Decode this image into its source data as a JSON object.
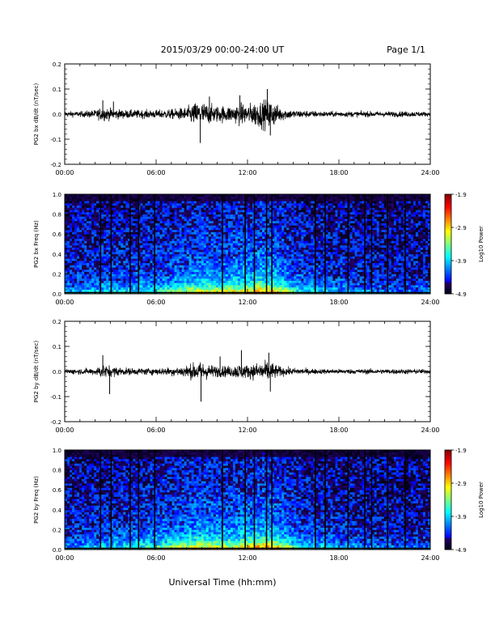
{
  "header": {
    "title": "2015/03/29  00:00-24:00 UT",
    "page": "Page 1/1"
  },
  "xaxis_label": "Universal Time (hh:mm)",
  "colorbar": {
    "ticks": [
      "-1.9",
      "-2.9",
      "-3.9",
      "-4.9"
    ],
    "label": "Log10 Power",
    "scale": "jet",
    "range": [
      -4.9,
      -1.9
    ]
  },
  "chart_data": [
    {
      "type": "line",
      "ylabel": "PG2 bx dB/dt (nT/sec)",
      "xlim": [
        "00:00",
        "24:00"
      ],
      "ylim": [
        -0.2,
        0.2
      ],
      "x_ticks": [
        "00:00",
        "06:00",
        "12:00",
        "18:00",
        "24:00"
      ],
      "y_ticks": [
        "0.2",
        "0.1",
        "0.0",
        "-0.1",
        "-0.2"
      ],
      "series": [
        {
          "envelope_hours": [
            0,
            1,
            2,
            2.5,
            3,
            4,
            5,
            6,
            7,
            8,
            8.5,
            9,
            9.5,
            10,
            11,
            11.5,
            12,
            12.5,
            13,
            13.5,
            14,
            14.5,
            15,
            16,
            17,
            18,
            19,
            20,
            21,
            22,
            23,
            24
          ],
          "envelope_amplitude": [
            0.02,
            0.02,
            0.03,
            0.05,
            0.04,
            0.03,
            0.03,
            0.03,
            0.035,
            0.05,
            0.08,
            0.09,
            0.07,
            0.06,
            0.06,
            0.08,
            0.07,
            0.09,
            0.1,
            0.11,
            0.06,
            0.04,
            0.03,
            0.025,
            0.02,
            0.02,
            0.02,
            0.02,
            0.02,
            0.02,
            0.02,
            0.015
          ],
          "spikes": [
            [
              2.5,
              0.055
            ],
            [
              3.2,
              0.05
            ],
            [
              8.9,
              -0.115
            ],
            [
              9.5,
              0.07
            ],
            [
              11.5,
              0.075
            ],
            [
              13.3,
              0.1
            ],
            [
              13.5,
              -0.085
            ]
          ]
        }
      ]
    },
    {
      "type": "heatmap",
      "ylabel": "PG2 bx Freq (Hz)",
      "xlim": [
        "00:00",
        "24:00"
      ],
      "ylim": [
        0,
        1.0
      ],
      "x_ticks": [
        "00:00",
        "06:00",
        "12:00",
        "18:00",
        "24:00"
      ],
      "y_ticks": [
        "1.0",
        "0.8",
        "0.6",
        "0.4",
        "0.2",
        "0.0"
      ],
      "value_range": [
        -4.9,
        -1.9
      ],
      "activity_hours": [
        0,
        2,
        4,
        6,
        7,
        8,
        9,
        10,
        11,
        12,
        13,
        14,
        15,
        16,
        18,
        20,
        22,
        24
      ],
      "activity_level": [
        0.25,
        0.35,
        0.4,
        0.45,
        0.55,
        0.65,
        0.75,
        0.7,
        0.75,
        0.8,
        0.9,
        0.8,
        0.5,
        0.4,
        0.3,
        0.25,
        0.2,
        0.2
      ],
      "gap_lines_hours": [
        2.35,
        3.05,
        4.3,
        4.85,
        5.9,
        10.35,
        11.85,
        12.45,
        13.25,
        13.6,
        16.45,
        17.1,
        18.6,
        19.7,
        20.15,
        21.2,
        22.35
      ]
    },
    {
      "type": "line",
      "ylabel": "PG2 by dB/dt (nT/sec)",
      "xlim": [
        "00:00",
        "24:00"
      ],
      "ylim": [
        -0.2,
        0.2
      ],
      "x_ticks": [
        "00:00",
        "06:00",
        "12:00",
        "18:00",
        "24:00"
      ],
      "y_ticks": [
        "0.2",
        "0.1",
        "0.0",
        "-0.1",
        "-0.2"
      ],
      "series": [
        {
          "envelope_hours": [
            0,
            1,
            2,
            2.5,
            3,
            4,
            5,
            6,
            7,
            8,
            8.5,
            9,
            9.5,
            10,
            11,
            11.5,
            12,
            12.5,
            13,
            13.5,
            14,
            14.5,
            15,
            16,
            17,
            18,
            19,
            20,
            21,
            22,
            23,
            24
          ],
          "envelope_amplitude": [
            0.02,
            0.02,
            0.025,
            0.05,
            0.04,
            0.025,
            0.025,
            0.025,
            0.03,
            0.045,
            0.06,
            0.07,
            0.05,
            0.04,
            0.04,
            0.06,
            0.045,
            0.06,
            0.07,
            0.075,
            0.04,
            0.03,
            0.025,
            0.02,
            0.018,
            0.018,
            0.018,
            0.018,
            0.018,
            0.018,
            0.018,
            0.015
          ],
          "spikes": [
            [
              2.5,
              0.065
            ],
            [
              2.95,
              -0.09
            ],
            [
              8.95,
              -0.12
            ],
            [
              10.2,
              0.06
            ],
            [
              11.6,
              0.085
            ],
            [
              13.4,
              0.075
            ],
            [
              13.5,
              -0.08
            ]
          ]
        }
      ]
    },
    {
      "type": "heatmap",
      "ylabel": "PG2 by Freq (Hz)",
      "xlim": [
        "00:00",
        "24:00"
      ],
      "ylim": [
        0,
        1.0
      ],
      "x_ticks": [
        "00:00",
        "06:00",
        "12:00",
        "18:00",
        "24:00"
      ],
      "y_ticks": [
        "1.0",
        "0.8",
        "0.6",
        "0.4",
        "0.2",
        "0.0"
      ],
      "value_range": [
        -4.9,
        -1.9
      ],
      "activity_hours": [
        0,
        2,
        4,
        6,
        7,
        8,
        9,
        10,
        11,
        12,
        13,
        14,
        15,
        16,
        18,
        20,
        22,
        24
      ],
      "activity_level": [
        0.25,
        0.35,
        0.42,
        0.5,
        0.6,
        0.7,
        0.8,
        0.72,
        0.72,
        0.8,
        0.9,
        0.8,
        0.5,
        0.4,
        0.3,
        0.25,
        0.2,
        0.2
      ],
      "gap_lines_hours": [
        2.35,
        3.05,
        4.3,
        4.85,
        5.9,
        10.35,
        11.85,
        12.45,
        13.25,
        13.6,
        16.45,
        17.1,
        18.6,
        19.7,
        20.15,
        21.2,
        22.35
      ]
    }
  ]
}
